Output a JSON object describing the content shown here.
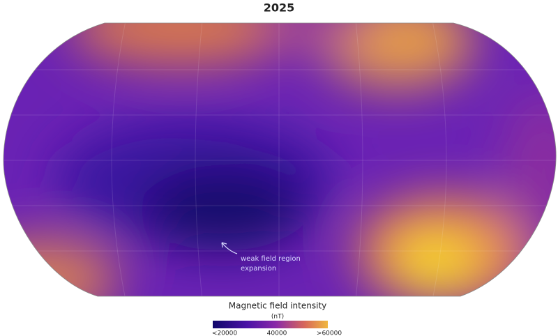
{
  "title": "2025",
  "annotation": [
    "weak field region",
    "expansion"
  ],
  "legend": {
    "title": "Magnetic field intensity",
    "unit": "(nT)",
    "range": [
      20000,
      60000
    ],
    "ticks": [
      {
        "value": 20000,
        "label": "<20000"
      },
      {
        "value": 40000,
        "label": "40000"
      },
      {
        "value": 60000,
        "label": ">60000"
      }
    ]
  }
}
